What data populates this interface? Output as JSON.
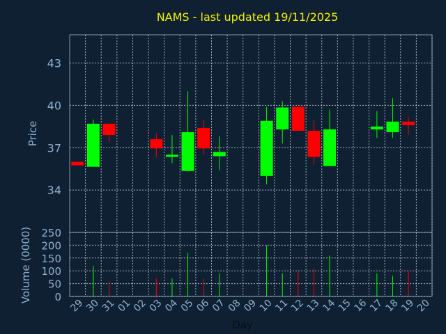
{
  "chart_data": {
    "type": "candlestick",
    "title": "NAMS - last updated 19/11/2025",
    "ylabel": "Price",
    "volume_label": "Volume (0000)",
    "xlabel": "Day",
    "ylim": [
      31,
      45
    ],
    "price_ticks": [
      "43",
      "40",
      "37",
      "34"
    ],
    "price_tick_values": [
      43,
      40,
      37,
      34
    ],
    "volume_ylim": [
      0,
      250
    ],
    "volume_ticks": [
      "250",
      "200",
      "150",
      "100",
      "50",
      "0"
    ],
    "volume_tick_values": [
      250,
      200,
      150,
      100,
      50,
      0
    ],
    "x_ticks": [
      "29",
      "30",
      "31",
      "01",
      "02",
      "03",
      "04",
      "05",
      "06",
      "07",
      "08",
      "09",
      "10",
      "11",
      "12",
      "13",
      "14",
      "15",
      "16",
      "17",
      "18",
      "19",
      "20"
    ],
    "up_color": "#00ff00",
    "down_color": "#ff0000",
    "candles": [
      {
        "day": "29",
        "open": 36.0,
        "close": 35.75,
        "high": 36.0,
        "low": 35.75,
        "volume": 0
      },
      {
        "day": "30",
        "open": 35.65,
        "close": 38.7,
        "high": 39.0,
        "low": 35.65,
        "volume": 120
      },
      {
        "day": "31",
        "open": 38.7,
        "close": 37.9,
        "high": 38.7,
        "low": 37.4,
        "volume": 60
      },
      {
        "day": "03",
        "open": 37.6,
        "close": 36.95,
        "high": 38.0,
        "low": 36.3,
        "volume": 70
      },
      {
        "day": "04",
        "open": 36.4,
        "close": 36.5,
        "high": 37.9,
        "low": 35.9,
        "volume": 70
      },
      {
        "day": "05",
        "open": 35.35,
        "close": 38.1,
        "high": 41.0,
        "low": 35.35,
        "volume": 170
      },
      {
        "day": "06",
        "open": 38.4,
        "close": 36.95,
        "high": 39.0,
        "low": 36.5,
        "volume": 70
      },
      {
        "day": "07",
        "open": 36.4,
        "close": 36.7,
        "high": 37.8,
        "low": 35.4,
        "volume": 90
      },
      {
        "day": "10",
        "open": 35.0,
        "close": 38.9,
        "high": 39.9,
        "low": 34.4,
        "volume": 200
      },
      {
        "day": "11",
        "open": 38.3,
        "close": 39.85,
        "high": 40.3,
        "low": 37.3,
        "volume": 90
      },
      {
        "day": "12",
        "open": 39.9,
        "close": 38.2,
        "high": 39.9,
        "low": 38.2,
        "volume": 100
      },
      {
        "day": "13",
        "open": 38.2,
        "close": 36.35,
        "high": 39.0,
        "low": 35.8,
        "volume": 110
      },
      {
        "day": "14",
        "open": 35.7,
        "close": 38.3,
        "high": 39.7,
        "low": 35.7,
        "volume": 160
      },
      {
        "day": "17",
        "open": 38.3,
        "close": 38.5,
        "high": 39.6,
        "low": 37.7,
        "volume": 90
      },
      {
        "day": "18",
        "open": 38.1,
        "close": 38.85,
        "high": 40.5,
        "low": 37.7,
        "volume": 80
      },
      {
        "day": "19",
        "open": 38.85,
        "close": 38.6,
        "high": 39.2,
        "low": 37.9,
        "volume": 100
      }
    ]
  }
}
